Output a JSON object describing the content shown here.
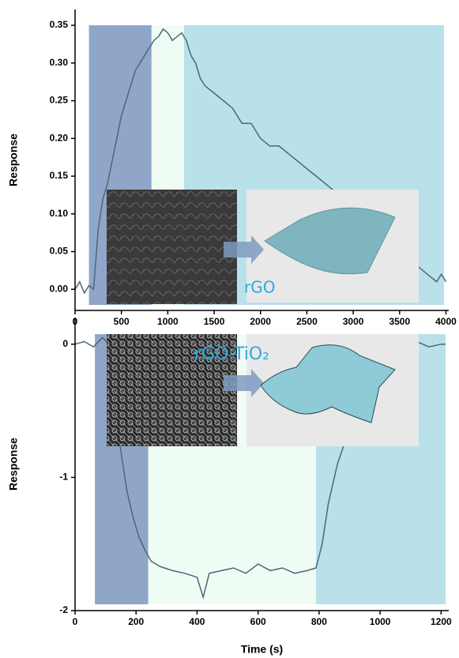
{
  "chart_data": [
    {
      "type": "line",
      "ylabel": "Response",
      "xlim": [
        0,
        4030
      ],
      "xticks": [
        0,
        500,
        1000,
        1500,
        2000,
        2500,
        3000,
        3500,
        4000
      ],
      "ylim": [
        -0.028,
        0.371
      ],
      "yticks": [
        {
          "value": 0,
          "label": "0.00"
        },
        {
          "value": 0.05,
          "label": "0.05"
        },
        {
          "value": 0.1,
          "label": "0.10"
        },
        {
          "value": 0.15,
          "label": "0.15"
        },
        {
          "value": 0.2,
          "label": "0.20"
        },
        {
          "value": 0.25,
          "label": "0.25"
        },
        {
          "value": 0.3,
          "label": "0.30"
        },
        {
          "value": 0.35,
          "label": "0.35"
        }
      ],
      "regions": [
        {
          "range": [
            150,
            825
          ],
          "color": "#8fa6c9"
        },
        {
          "range": [
            825,
            1175
          ],
          "color": "#eefcf4"
        },
        {
          "range": [
            1175,
            3980
          ],
          "color": "#b8e1ea"
        }
      ],
      "annotations": [
        "rGO"
      ],
      "x": [
        0,
        50,
        100,
        150,
        200,
        250,
        300,
        350,
        400,
        450,
        500,
        550,
        600,
        650,
        700,
        750,
        800,
        850,
        900,
        950,
        1000,
        1050,
        1100,
        1150,
        1200,
        1250,
        1300,
        1350,
        1400,
        1500,
        1600,
        1700,
        1800,
        1900,
        2000,
        2100,
        2200,
        2300,
        2400,
        2500,
        2600,
        2700,
        2800,
        2900,
        3000,
        3100,
        3200,
        3300,
        3400,
        3500,
        3600,
        3700,
        3800,
        3900,
        3950,
        4000
      ],
      "series": [
        {
          "color": "#4f6678",
          "values": [
            0.0,
            0.01,
            -0.005,
            0.005,
            0.0,
            0.08,
            0.12,
            0.14,
            0.17,
            0.2,
            0.23,
            0.25,
            0.27,
            0.29,
            0.3,
            0.31,
            0.32,
            0.33,
            0.335,
            0.345,
            0.34,
            0.33,
            0.335,
            0.34,
            0.33,
            0.31,
            0.3,
            0.28,
            0.27,
            0.26,
            0.25,
            0.24,
            0.22,
            0.22,
            0.2,
            0.19,
            0.19,
            0.18,
            0.17,
            0.16,
            0.15,
            0.14,
            0.13,
            0.11,
            0.1,
            0.09,
            0.08,
            0.07,
            0.06,
            0.05,
            0.04,
            0.03,
            0.02,
            0.01,
            0.02,
            0.01
          ]
        }
      ]
    },
    {
      "type": "line",
      "xlabel": "Time (s)",
      "ylabel": "Response",
      "xlim": [
        0,
        1225
      ],
      "xticks": [
        0,
        200,
        400,
        600,
        800,
        1000,
        1200
      ],
      "ylim": [
        -2,
        0.2
      ],
      "yticks": [
        -2,
        -1,
        0
      ],
      "regions": [
        {
          "range": [
            65,
            240
          ],
          "color": "#8fa6c9"
        },
        {
          "range": [
            240,
            790
          ],
          "color": "#eefcf4"
        },
        {
          "range": [
            790,
            1215
          ],
          "color": "#b8e1ea"
        }
      ],
      "annotations": [
        "rGO-TiO₂"
      ],
      "x": [
        0,
        30,
        60,
        90,
        110,
        130,
        150,
        170,
        190,
        210,
        230,
        250,
        280,
        320,
        360,
        400,
        420,
        440,
        480,
        520,
        560,
        600,
        640,
        680,
        720,
        760,
        790,
        810,
        830,
        860,
        890,
        920,
        960,
        1000,
        1040,
        1080,
        1120,
        1160,
        1200,
        1215
      ],
      "series": [
        {
          "color": "#4f6678",
          "values": [
            0.0,
            0.02,
            -0.02,
            0.05,
            0.0,
            -0.4,
            -0.8,
            -1.1,
            -1.3,
            -1.45,
            -1.55,
            -1.63,
            -1.67,
            -1.7,
            -1.72,
            -1.75,
            -1.9,
            -1.72,
            -1.7,
            -1.68,
            -1.72,
            -1.65,
            -1.7,
            -1.68,
            -1.72,
            -1.7,
            -1.68,
            -1.5,
            -1.2,
            -0.9,
            -0.7,
            -0.5,
            -0.3,
            -0.1,
            0.0,
            -0.02,
            0.02,
            -0.02,
            0.0,
            0.0
          ]
        }
      ]
    }
  ]
}
